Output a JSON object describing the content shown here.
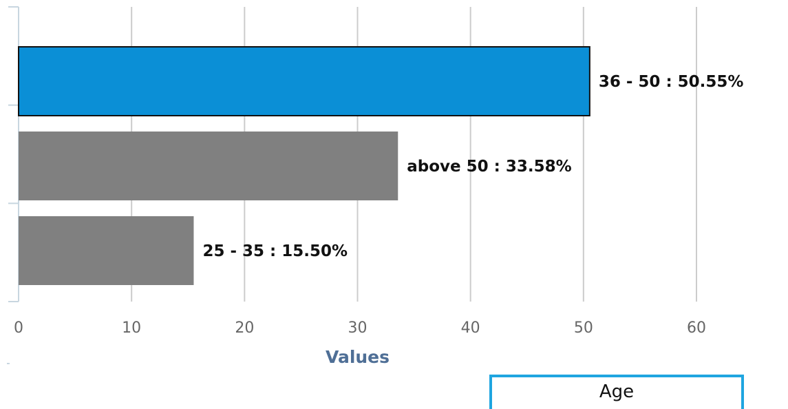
{
  "chart_data": {
    "type": "bar",
    "orientation": "horizontal",
    "categories": [
      "36 - 50",
      "above 50",
      "25 - 35"
    ],
    "values": [
      50.55,
      33.58,
      15.5
    ],
    "data_labels": [
      "36 - 50 : 50.55%",
      "above 50 : 33.58%",
      "25 - 35 : 15.50%"
    ],
    "xlabel": "Values",
    "xlim": [
      0,
      60
    ],
    "xticks": [
      "0",
      "10",
      "20",
      "30",
      "40",
      "50",
      "60"
    ],
    "grid": true,
    "legend": "Age",
    "colors": {
      "highlight": "#0b8fd6",
      "default": "#808080",
      "grid": "#cccccc",
      "axis_title": "#4f6f96",
      "legend_border": "#1fa5e0"
    }
  }
}
